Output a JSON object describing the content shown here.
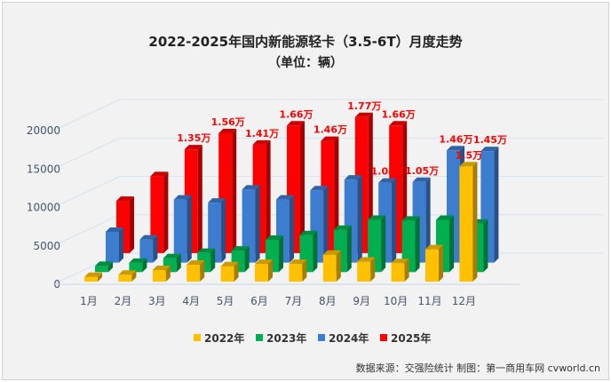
{
  "chart_data": {
    "type": "bar",
    "title": "2022-2025年国内新能源轻卡（3.5-6T）月度走势",
    "subtitle": "（单位：辆）",
    "categories": [
      "1月",
      "2月",
      "3月",
      "4月",
      "5月",
      "6月",
      "7月",
      "8月",
      "9月",
      "10月",
      "11月",
      "12月"
    ],
    "yticks": [
      0,
      5000,
      10000,
      15000,
      20000
    ],
    "ylim": [
      0,
      20000
    ],
    "grid": true,
    "legend_position": "bottom",
    "series": [
      {
        "name": "2022年",
        "color": "#ffc000",
        "values": [
          600,
          900,
          1500,
          2200,
          2000,
          2300,
          2300,
          3500,
          2600,
          2400,
          4200,
          15000
        ],
        "labels": [
          "",
          "",
          "",
          "",
          "",
          "",
          "",
          "",
          "",
          "",
          "",
          "1.5万"
        ]
      },
      {
        "name": "2023年",
        "color": "#00b050",
        "values": [
          800,
          1200,
          1800,
          2500,
          2800,
          4200,
          4800,
          5500,
          6800,
          6700,
          6800,
          6300
        ],
        "labels": [
          "",
          "",
          "",
          "",
          "",
          "",
          "",
          "",
          "",
          "",
          "",
          ""
        ]
      },
      {
        "name": "2024年",
        "color": "#3c7dd0",
        "values": [
          4000,
          3000,
          8200,
          7800,
          9500,
          8200,
          9400,
          10800,
          10400,
          10500,
          14600,
          14500
        ],
        "labels": [
          "",
          "",
          "",
          "",
          "",
          "",
          "",
          "",
          "1.04万",
          "1.05万",
          "1.46万",
          "1.45万"
        ]
      },
      {
        "name": "2025年",
        "color": "#ff0000",
        "values": [
          6800,
          10000,
          13500,
          15600,
          14100,
          16600,
          14600,
          17700,
          16600,
          null,
          null,
          null
        ],
        "labels": [
          "",
          "",
          "1.35万",
          "1.56万",
          "1.41万",
          "1.66万",
          "1.46万",
          "1.77万",
          "1.66万",
          "",
          "",
          ""
        ]
      }
    ],
    "source": "数据来源：交强险统计  制图：第一商用车网 cvworld.cn"
  }
}
